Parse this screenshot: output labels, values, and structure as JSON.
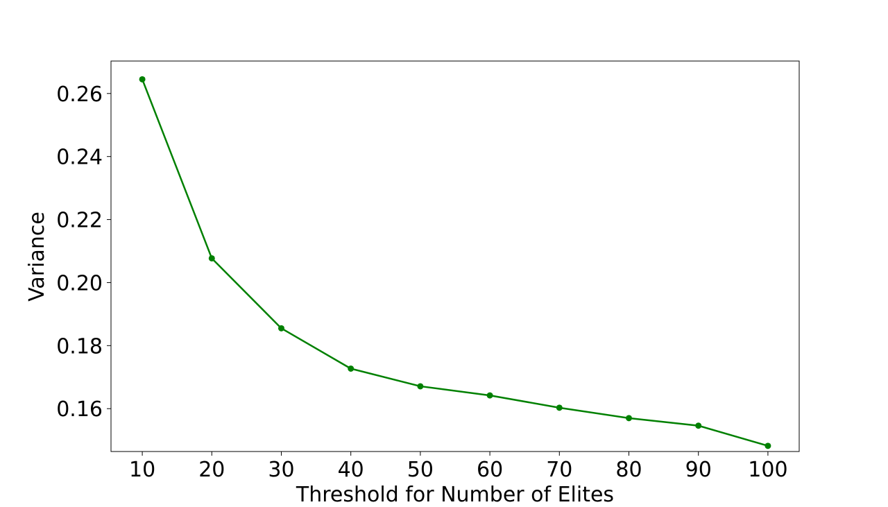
{
  "chart_data": {
    "type": "line",
    "title": "",
    "xlabel": "Threshold for Number of Elites",
    "ylabel": "Variance",
    "x": [
      10,
      20,
      30,
      40,
      50,
      60,
      70,
      80,
      90,
      100
    ],
    "series": [
      {
        "color": "#008000",
        "marker": "circle",
        "values": [
          0.2645,
          0.2077,
          0.1855,
          0.1727,
          0.1671,
          0.1642,
          0.1603,
          0.157,
          0.1546,
          0.1482
        ]
      }
    ],
    "xticks": [
      10,
      20,
      30,
      40,
      50,
      60,
      70,
      80,
      90,
      100
    ],
    "xtick_labels": [
      "10",
      "20",
      "30",
      "40",
      "50",
      "60",
      "70",
      "80",
      "90",
      "100"
    ],
    "yticks": [
      0.16,
      0.18,
      0.2,
      0.22,
      0.24,
      0.26
    ],
    "ytick_labels": [
      "0.16",
      "0.18",
      "0.20",
      "0.22",
      "0.24",
      "0.26"
    ],
    "xlim": [
      5.5,
      104.5
    ],
    "ylim": [
      0.1464,
      0.2703
    ],
    "grid": false,
    "legend": "none"
  }
}
